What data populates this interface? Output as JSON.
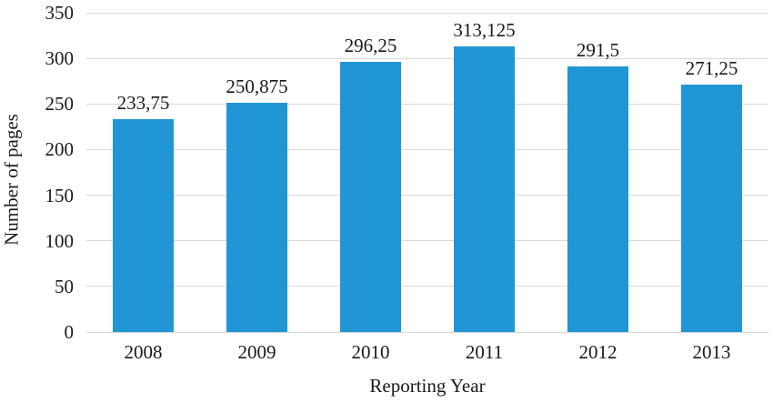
{
  "chart_data": {
    "type": "bar",
    "title": "",
    "xlabel": "Reporting Year",
    "ylabel": "Number of pages",
    "categories": [
      "2008",
      "2009",
      "2010",
      "2011",
      "2012",
      "2013"
    ],
    "values": [
      233.75,
      250.875,
      296.25,
      313.125,
      291.5,
      271.25
    ],
    "data_labels": [
      "233,75",
      "250,875",
      "296,25",
      "313,125",
      "291,5",
      "271,25"
    ],
    "ylim": [
      0,
      350
    ],
    "yticks": [
      0,
      50,
      100,
      150,
      200,
      250,
      300,
      350
    ],
    "ytick_labels": [
      "0",
      "50",
      "100",
      "150",
      "200",
      "250",
      "300",
      "350"
    ],
    "grid": true,
    "legend_position": "none",
    "bar_color": "#2196d5",
    "gridline_color": "#d9d9d9",
    "text_color": "#1a1a1a"
  }
}
